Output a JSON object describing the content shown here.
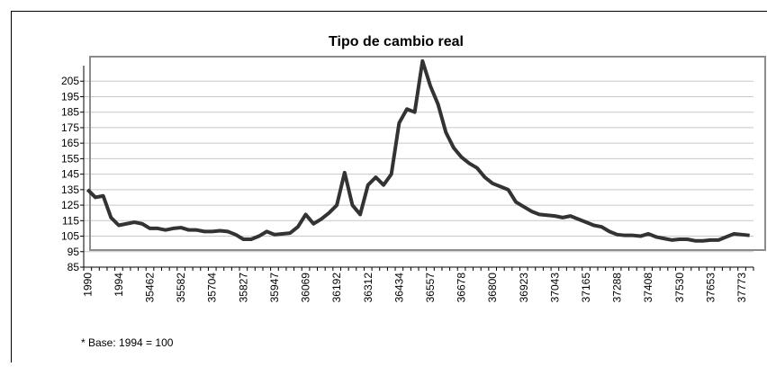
{
  "chart_data": {
    "type": "line",
    "title": "Tipo de cambio real",
    "footnote": "* Base: 1994 = 100",
    "categories": [
      "1990",
      null,
      null,
      null,
      "1994",
      null,
      null,
      null,
      "35462",
      null,
      null,
      null,
      "35582",
      null,
      null,
      null,
      "35704",
      null,
      null,
      null,
      "35827",
      null,
      null,
      null,
      "35947",
      null,
      null,
      null,
      "36069",
      null,
      null,
      null,
      "36192",
      null,
      null,
      null,
      "36312",
      null,
      null,
      null,
      "36434",
      null,
      null,
      null,
      "36557",
      null,
      null,
      null,
      "36678",
      null,
      null,
      null,
      "36800",
      null,
      null,
      null,
      "36923",
      null,
      null,
      null,
      "37043",
      null,
      null,
      null,
      "37165",
      null,
      null,
      null,
      "37288",
      null,
      null,
      null,
      "37408",
      null,
      null,
      null,
      "37530",
      null,
      null,
      null,
      "37653",
      null,
      null,
      null,
      "37773",
      null
    ],
    "series": [
      {
        "color": "#333333",
        "values": [
          135,
          130,
          131,
          117,
          112,
          113,
          114,
          113,
          110,
          110,
          109,
          110,
          110.5,
          109,
          109,
          108,
          108,
          108.5,
          108,
          106,
          103,
          103,
          105,
          108,
          106,
          106.5,
          107,
          111,
          119,
          113,
          116,
          120,
          125,
          146,
          125,
          119,
          138,
          143,
          138,
          145,
          178,
          187,
          185,
          218,
          202,
          190,
          172,
          162,
          156,
          152,
          149,
          143,
          139,
          137,
          135,
          127,
          124,
          121,
          119,
          118.5,
          118,
          117,
          118,
          116,
          114,
          112,
          111,
          108,
          106,
          105.5,
          105.5,
          105,
          106.5,
          104.5,
          103.5,
          102.5,
          103,
          103,
          102,
          102,
          102.5,
          102.5,
          104.5,
          106.5,
          106,
          105.5
        ]
      }
    ],
    "ylim": [
      85,
      215
    ],
    "yticks": [
      85,
      95,
      105,
      115,
      125,
      135,
      145,
      155,
      165,
      175,
      185,
      195,
      205
    ],
    "grid": true
  }
}
